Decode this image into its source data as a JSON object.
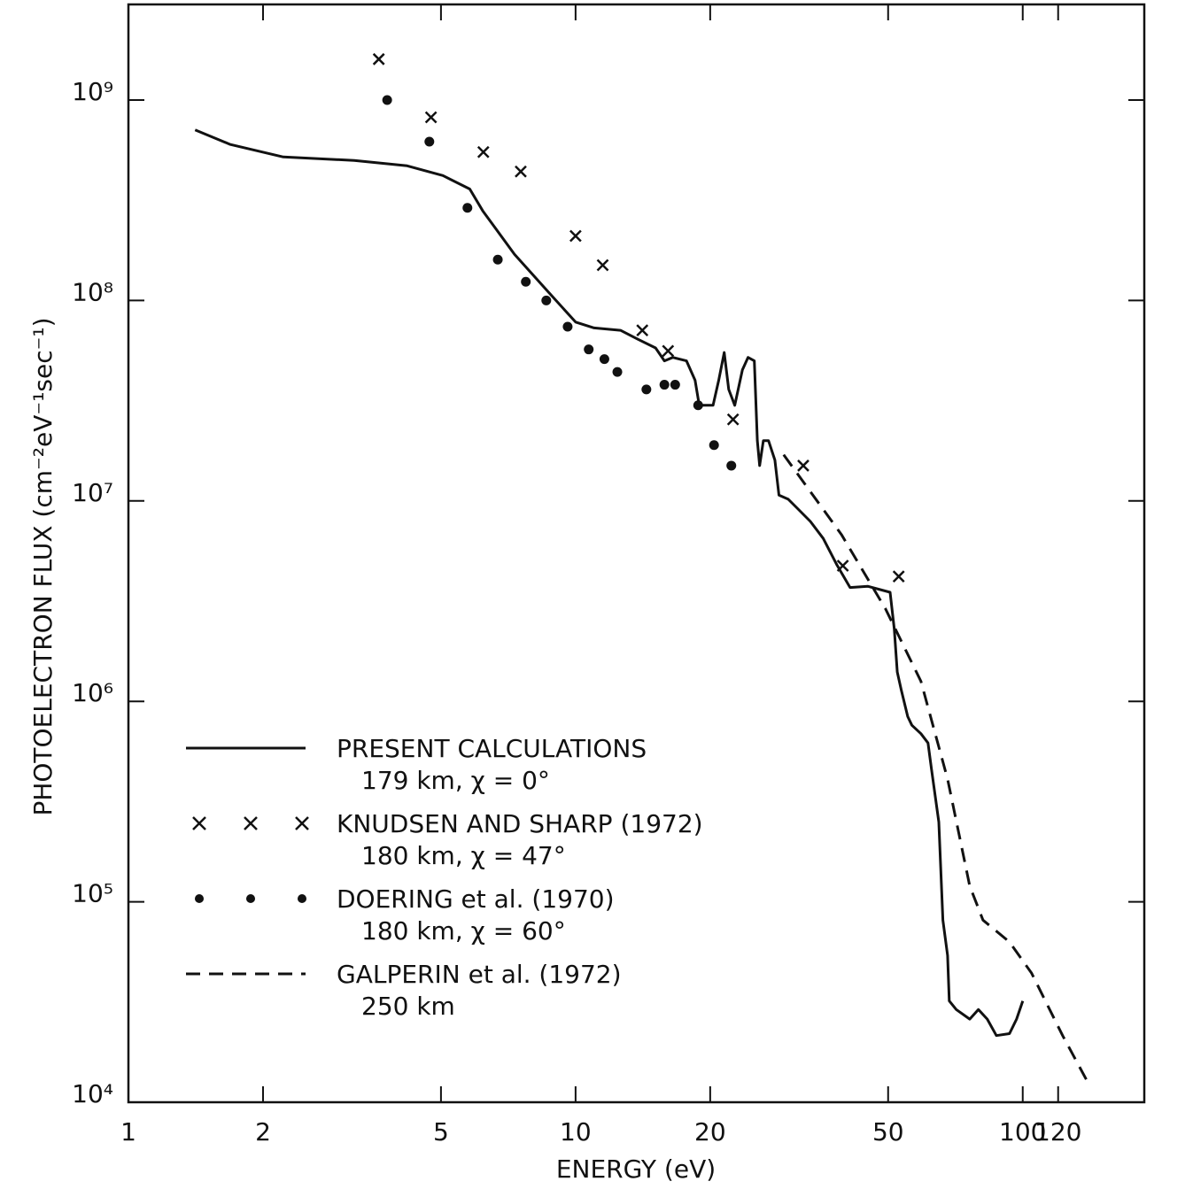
{
  "chart_data": {
    "type": "line",
    "xlabel": "ENERGY (eV)",
    "ylabel": "PHOTOELECTRON FLUX (cm⁻²eV⁻¹sec⁻¹)",
    "xscale": "log",
    "yscale": "log",
    "xlim": [
      1,
      187
    ],
    "ylim": [
      10000,
      3000000000
    ],
    "xticks": [
      1,
      2,
      5,
      10,
      20,
      50,
      100,
      120
    ],
    "yticks": [
      {
        "value": 10000,
        "label": "10⁴"
      },
      {
        "value": 100000,
        "label": "10⁵"
      },
      {
        "value": 1000000,
        "label": "10⁶"
      },
      {
        "value": 10000000,
        "label": "10⁷"
      },
      {
        "value": 100000000,
        "label": "10⁸"
      },
      {
        "value": 1000000000,
        "label": "10⁹"
      }
    ],
    "series": [
      {
        "name": "PRESENT CALCULATIONS",
        "subtitle": "179 km, χ = 0°",
        "kind": "line",
        "style": "solid",
        "color": "#111111",
        "x": [
          1.41,
          1.69,
          2.22,
          3.2,
          4.2,
          5.05,
          5.8,
          6.2,
          7.3,
          8.7,
          10,
          11,
          12.6,
          13.8,
          15.1,
          15.8,
          16.5,
          17.7,
          18.5,
          18.9,
          20.3,
          20.9,
          21.5,
          22.0,
          22.7,
          23.6,
          24.3,
          25.1,
          25.5,
          25.8,
          26.3,
          27.0,
          27.9,
          28.5,
          29.9,
          31.3,
          33.5,
          35.8,
          38.4,
          41.1,
          45.0,
          50.5,
          51.6,
          52.4,
          53.5,
          55.3,
          56.5,
          59.2,
          61.4,
          62.5,
          64.9,
          66.3,
          67.9,
          68.5,
          71.0,
          76.1,
          79.6,
          83.3,
          87.3,
          93.4,
          96.9,
          100
        ],
        "values": [
          710000000,
          600000000,
          520000000,
          500000000,
          470000000,
          420000000,
          360000000,
          280000000,
          170000000,
          110000000,
          78000000,
          73000000,
          71000000,
          64000000,
          58000000,
          50000000,
          52000000,
          50000000,
          40000000,
          30000000,
          30000000,
          40000000,
          55000000,
          36000000,
          30000000,
          45000000,
          52000000,
          50000000,
          20000000,
          15000000,
          20000000,
          20000000,
          16000000,
          10700000,
          10200000,
          9200000,
          7900000,
          6500000,
          4800000,
          3700000,
          3750000,
          3500000,
          2300000,
          1400000,
          1140000,
          840000,
          760000,
          690000,
          620000,
          460000,
          250000,
          81000,
          54000,
          32000,
          29000,
          26000,
          29000,
          26000,
          21500,
          22000,
          26000,
          32000
        ]
      },
      {
        "name": "KNUDSEN AND SHARP (1972)",
        "subtitle": "180 km, χ = 47°",
        "kind": "scatter",
        "marker": "cross",
        "color": "#111111",
        "x": [
          3.63,
          4.75,
          6.22,
          7.54,
          10,
          11.5,
          14.1,
          16.1,
          22.5,
          32.3,
          39.6,
          52.8
        ],
        "values": [
          1600000000,
          820000000,
          550000000,
          440000000,
          210000000,
          150000000,
          71000000,
          56000000,
          25500000,
          15000000,
          4750000,
          4200000
        ]
      },
      {
        "name": "DOERING et al. (1970)",
        "subtitle": "180 km, χ = 60°",
        "kind": "scatter",
        "marker": "dot",
        "color": "#111111",
        "x": [
          3.79,
          4.71,
          5.73,
          6.7,
          7.74,
          8.6,
          9.6,
          10.7,
          11.6,
          12.4,
          14.4,
          15.8,
          16.7,
          18.8,
          20.4,
          22.3
        ],
        "values": [
          1000000000,
          620000000,
          290000000,
          160000000,
          124000000,
          100000000,
          74000000,
          57000000,
          51000000,
          44000000,
          36000000,
          38000000,
          38000000,
          30000000,
          19000000,
          15000000
        ]
      },
      {
        "name": "GALPERIN et al. (1972)",
        "subtitle": "250 km",
        "kind": "line",
        "style": "dashed",
        "color": "#111111",
        "x": [
          29.2,
          39.3,
          49.3,
          59.2,
          67.9,
          76.1,
          81.5,
          93.4,
          104.7,
          122.8,
          140.8
        ],
        "values": [
          17000000,
          6800000,
          2900000,
          1260000,
          410000,
          120000,
          81000,
          63000,
          44000,
          21500,
          12200
        ]
      }
    ]
  }
}
